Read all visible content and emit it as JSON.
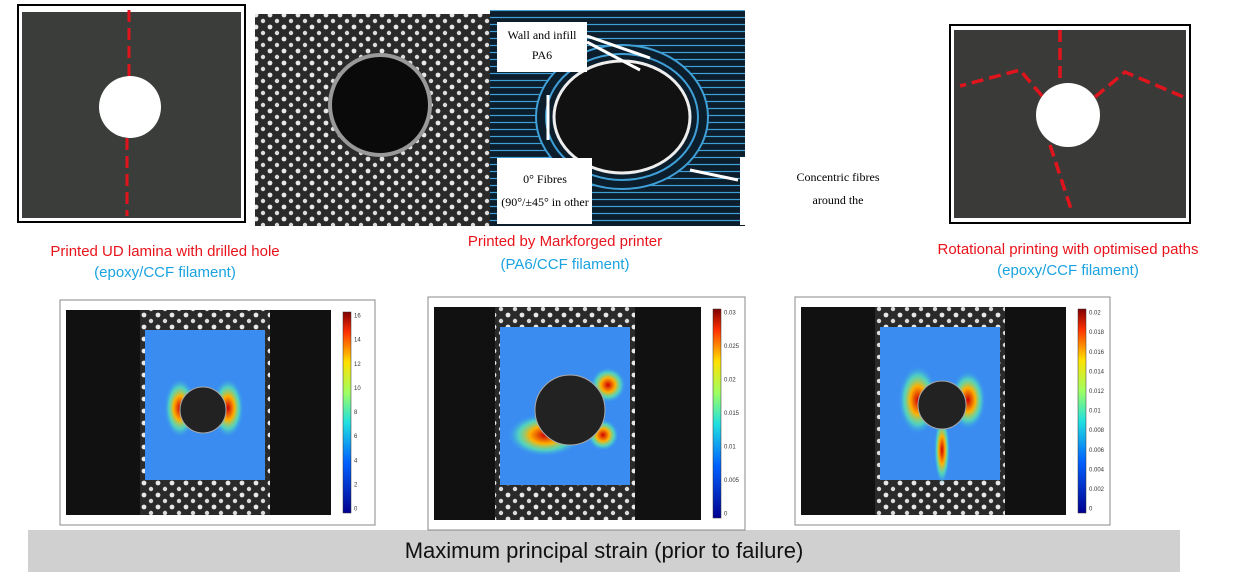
{
  "panels": [
    {
      "caption": "Printed UD lamina with drilled hole",
      "material": "(epoxy/CCF filament)"
    },
    {
      "caption": "Printed by Markforged printer",
      "material": "(PA6/CCF filament)"
    },
    {
      "caption": "Rotational printing with optimised paths",
      "material": "(epoxy/CCF filament)"
    }
  ],
  "diagram": {
    "wall_label": [
      "Wall and infill",
      "PA6"
    ],
    "fibre_label": [
      "0° Fibres",
      "(90°/±45° in other"
    ],
    "concentric_label": [
      "Concentric fibres",
      "around the"
    ]
  },
  "strain_maps": [
    {
      "ticks": [
        "16",
        "14",
        "12",
        "10",
        "8",
        "6",
        "4",
        "2",
        "0"
      ]
    },
    {
      "ticks": [
        "0.03",
        "0.025",
        "0.02",
        "0.015",
        "0.01",
        "0.005",
        "0"
      ]
    },
    {
      "ticks": [
        "0.02",
        "0.018",
        "0.016",
        "0.014",
        "0.012",
        "0.01",
        "0.008",
        "0.006",
        "0.004",
        "0.002",
        "0"
      ]
    }
  ],
  "footer": "Maximum principal strain (prior to failure)"
}
